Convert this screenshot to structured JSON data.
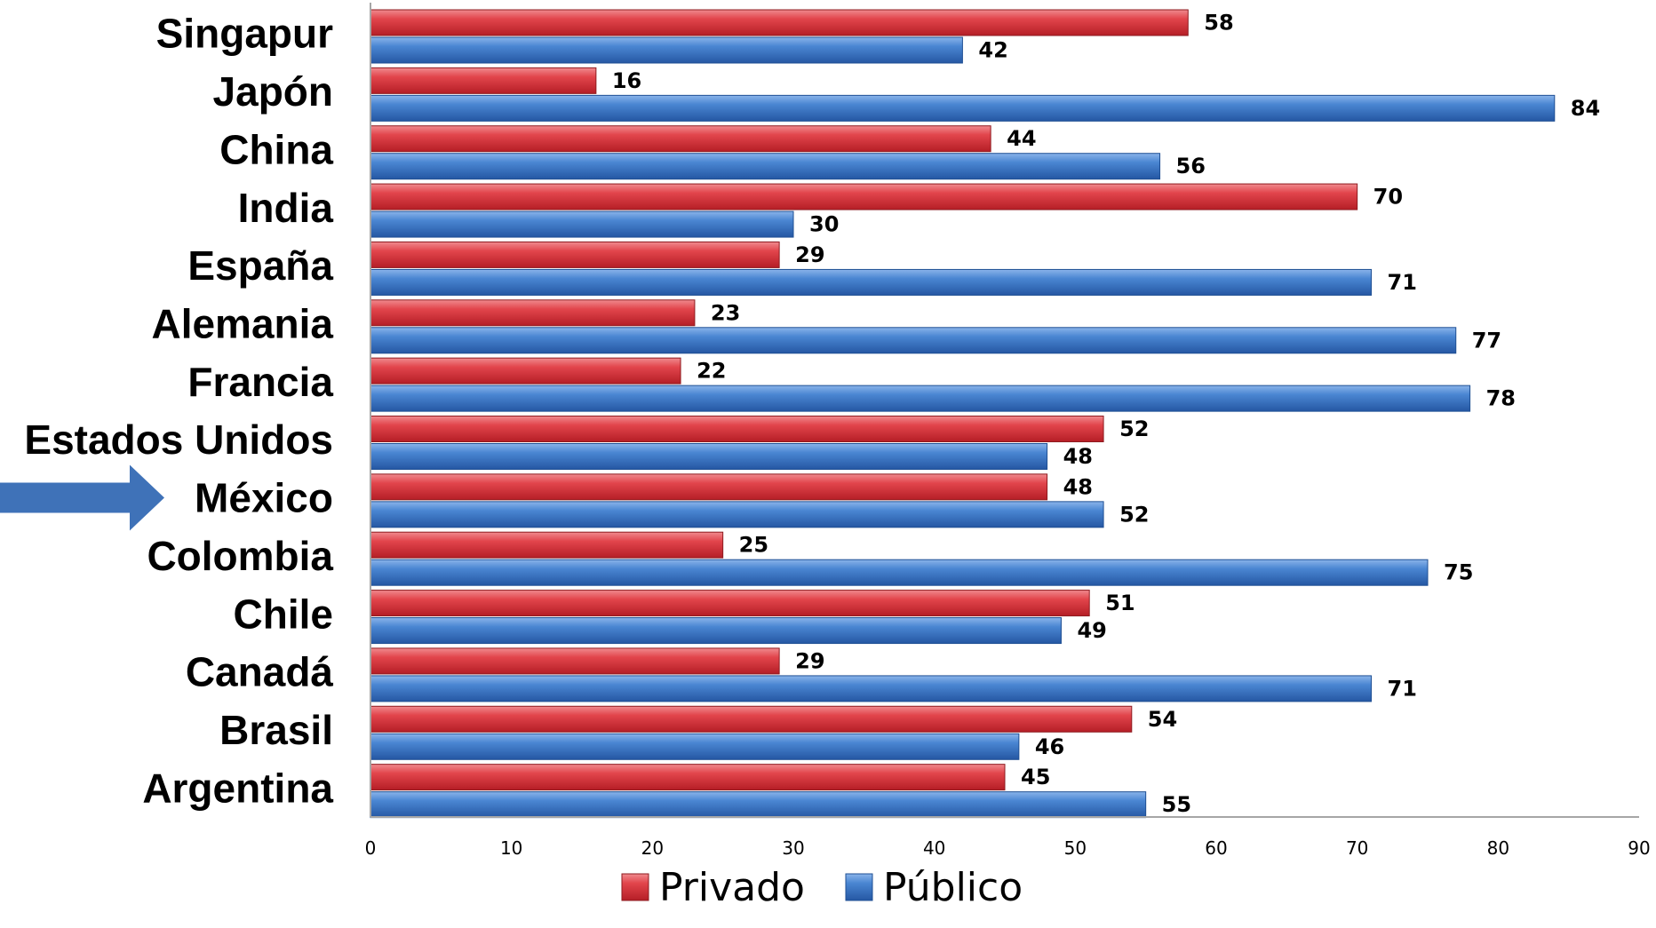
{
  "chart_data": {
    "type": "bar",
    "orientation": "horizontal",
    "title": "",
    "xlabel": "",
    "ylabel": "",
    "xlim": [
      0,
      90
    ],
    "x_ticks": [
      0,
      10,
      20,
      30,
      40,
      50,
      60,
      70,
      80,
      90
    ],
    "grid": false,
    "legend": "bottom",
    "categories": [
      "Singapur",
      "Japón",
      "China",
      "India",
      "España",
      "Alemania",
      "Francia",
      "Estados Unidos",
      "México",
      "Colombia",
      "Chile",
      "Canadá",
      "Brasil",
      "Argentina"
    ],
    "highlighted_category": "México",
    "series": [
      {
        "name": "Privado",
        "color": "#d9363e",
        "values": [
          58,
          16,
          44,
          70,
          29,
          23,
          22,
          52,
          48,
          25,
          51,
          29,
          54,
          45
        ]
      },
      {
        "name": "Público",
        "color": "#3d78c6",
        "values": [
          42,
          84,
          56,
          30,
          71,
          77,
          78,
          48,
          52,
          75,
          49,
          71,
          46,
          55
        ]
      }
    ]
  },
  "arrow_icon": "right-arrow-icon",
  "arrow_color": "#3f72b8"
}
